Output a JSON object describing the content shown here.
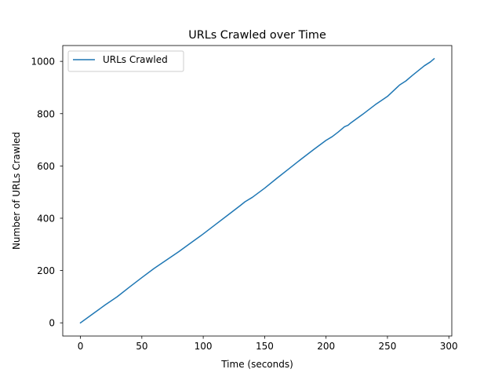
{
  "chart_data": {
    "type": "line",
    "title": "URLs Crawled over Time",
    "xlabel": "Time (seconds)",
    "ylabel": "Number of URLs Crawled",
    "xlim": [
      -14.4,
      302.4
    ],
    "ylim": [
      -50.5,
      1060.5
    ],
    "xticks": [
      0,
      50,
      100,
      150,
      200,
      250,
      300
    ],
    "yticks": [
      0,
      200,
      400,
      600,
      800,
      1000
    ],
    "xtick_labels": [
      "0",
      "50",
      "100",
      "150",
      "200",
      "250",
      "300"
    ],
    "ytick_labels": [
      "0",
      "200",
      "400",
      "600",
      "800",
      "1000"
    ],
    "grid": false,
    "legend": "upper-left",
    "series": [
      {
        "name": "URLs Crawled",
        "color": "#1f77b4",
        "x": [
          0,
          10,
          20,
          30,
          40,
          50,
          60,
          70,
          80,
          90,
          100,
          110,
          120,
          130,
          134,
          140,
          150,
          160,
          170,
          180,
          190,
          200,
          205,
          210,
          215,
          218,
          220,
          230,
          240,
          250,
          260,
          265,
          270,
          280,
          285,
          288
        ],
        "y": [
          0,
          34,
          68,
          100,
          137,
          173,
          208,
          240,
          272,
          306,
          340,
          376,
          412,
          448,
          463,
          480,
          515,
          553,
          590,
          627,
          663,
          698,
          712,
          730,
          750,
          756,
          764,
          798,
          834,
          866,
          910,
          925,
          945,
          983,
          998,
          1010
        ]
      }
    ]
  }
}
